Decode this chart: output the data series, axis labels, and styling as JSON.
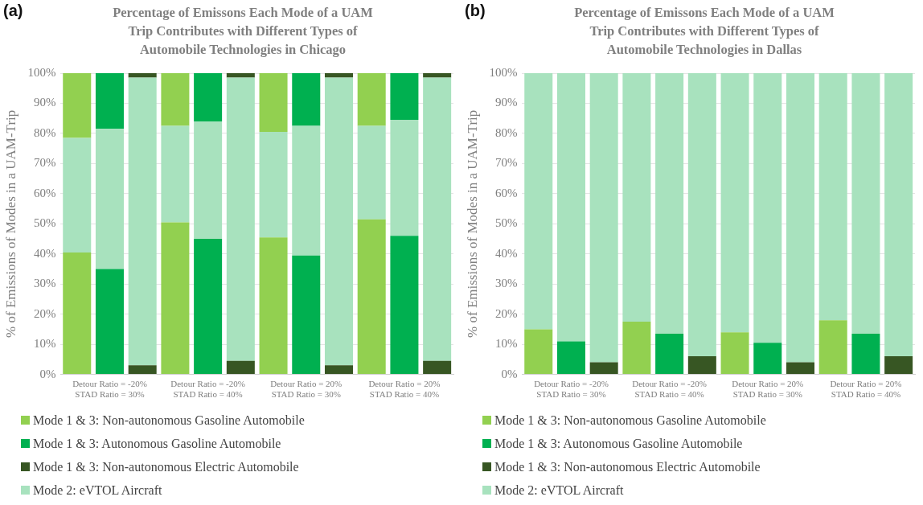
{
  "chart_data": [
    {
      "type": "bar",
      "stacked": true,
      "title": "Percentage of Emissons Each Mode of a UAM Trip Contributes with Different Types of Automobile Technologies in Chicago",
      "ylabel": "% of Emissions of Modes in a UAM-Trip",
      "annotations": [
        "(a)"
      ],
      "categories": [
        null,
        "Detour Ratio = -20%\nSTAD Ratio = 30%",
        null,
        null,
        "Detour Ratio = -20%\nSTAD Ratio = 40%",
        null,
        null,
        "Detour Ratio = 20%\nSTAD Ratio = 30%",
        null,
        null,
        "Detour Ratio = 20%\nSTAD Ratio = 40%",
        null
      ],
      "series": [
        {
          "name": "Mode 1 & 3: Non-autonomous Gasoline Automobile",
          "color": "#92d050",
          "values": [
            40.5,
            null,
            null,
            50.5,
            null,
            null,
            45.5,
            null,
            null,
            51.5,
            null,
            null
          ]
        },
        {
          "name": "Mode 1 & 3: Autonomous Gasoline Automobile",
          "color": "#00b050",
          "values": [
            null,
            35,
            null,
            null,
            45,
            null,
            null,
            39.5,
            null,
            null,
            46,
            null
          ]
        },
        {
          "name": "Mode 1 & 3: Non-autonomous Electric Automobile",
          "color": "#375623",
          "values": [
            null,
            null,
            3,
            null,
            null,
            4.5,
            null,
            null,
            3,
            null,
            null,
            4.5
          ]
        },
        {
          "name": "Mode 2: eVTOL Aircraft",
          "color": "#a8e2be",
          "values": [
            38,
            46.5,
            95.5,
            32,
            39,
            94,
            35,
            43,
            95.5,
            31,
            38.5,
            94
          ]
        },
        {
          "color": "#92d050",
          "values": [
            21.5,
            null,
            null,
            17.5,
            null,
            null,
            19.5,
            null,
            null,
            17.5,
            null,
            null
          ]
        },
        {
          "color": "#00b050",
          "values": [
            null,
            18.5,
            null,
            null,
            16,
            null,
            null,
            17.5,
            null,
            null,
            15.5,
            null
          ]
        },
        {
          "color": "#375623",
          "values": [
            null,
            null,
            1.5,
            null,
            null,
            1.5,
            null,
            null,
            1.5,
            null,
            null,
            1.5
          ]
        }
      ],
      "ylim": [
        0,
        100
      ],
      "yticks": [
        {
          "value": 0,
          "label": "0%"
        },
        {
          "value": 10,
          "label": "10%"
        },
        {
          "value": 20,
          "label": "20%"
        },
        {
          "value": 30,
          "label": "30%"
        },
        {
          "value": 40,
          "label": "40%"
        },
        {
          "value": 50,
          "label": "50%"
        },
        {
          "value": 60,
          "label": "60%"
        },
        {
          "value": 70,
          "label": "70%"
        },
        {
          "value": 80,
          "label": "80%"
        },
        {
          "value": 90,
          "label": "90%"
        },
        {
          "value": 100,
          "label": "100%"
        }
      ],
      "grid": "y",
      "legend": "bottom"
    },
    {
      "type": "bar",
      "stacked": true,
      "title": "Percentage of Emissons Each Mode of a UAM Trip Contributes with Different Types of Automobile Technologies in Dallas",
      "ylabel": "% of Emissions of Modes in a UAM-Trip",
      "annotations": [
        "(b)"
      ],
      "categories": [
        null,
        "Detour Ratio = -20%\nSTAD Ratio = 30%",
        null,
        null,
        "Detour Ratio = -20%\nSTAD Ratio = 40%",
        null,
        null,
        "Detour Ratio = 20%\nSTAD Ratio = 30%",
        null,
        null,
        "Detour Ratio = 20%\nSTAD Ratio = 40%",
        null
      ],
      "series": [
        {
          "name": "Mode 1 & 3: Non-autonomous Gasoline Automobile",
          "color": "#92d050",
          "values": [
            15,
            null,
            null,
            17.5,
            null,
            null,
            14,
            null,
            null,
            18,
            null,
            null
          ]
        },
        {
          "name": "Mode 1 & 3: Autonomous Gasoline Automobile",
          "color": "#00b050",
          "values": [
            null,
            11,
            null,
            null,
            13.5,
            null,
            null,
            10.5,
            null,
            null,
            13.5,
            null
          ]
        },
        {
          "name": "Mode 1 & 3: Non-autonomous Electric Automobile",
          "color": "#375623",
          "values": [
            null,
            null,
            4,
            null,
            null,
            6,
            null,
            null,
            4,
            null,
            null,
            6
          ]
        },
        {
          "name": "Mode 2: eVTOL Aircraft",
          "color": "#a8e2be",
          "values": [
            85,
            89,
            96,
            82.5,
            86.5,
            94,
            86,
            89.5,
            96,
            82,
            86.5,
            94
          ]
        }
      ],
      "ylim": [
        0,
        100
      ],
      "yticks": [
        {
          "value": 0,
          "label": "0%"
        },
        {
          "value": 10,
          "label": "10%"
        },
        {
          "value": 20,
          "label": "20%"
        },
        {
          "value": 30,
          "label": "30%"
        },
        {
          "value": 40,
          "label": "40%"
        },
        {
          "value": 50,
          "label": "50%"
        },
        {
          "value": 60,
          "label": "60%"
        },
        {
          "value": 70,
          "label": "70%"
        },
        {
          "value": 80,
          "label": "80%"
        },
        {
          "value": 90,
          "label": "90%"
        },
        {
          "value": 100,
          "label": "100%"
        }
      ],
      "grid": "y",
      "legend": "bottom"
    }
  ]
}
